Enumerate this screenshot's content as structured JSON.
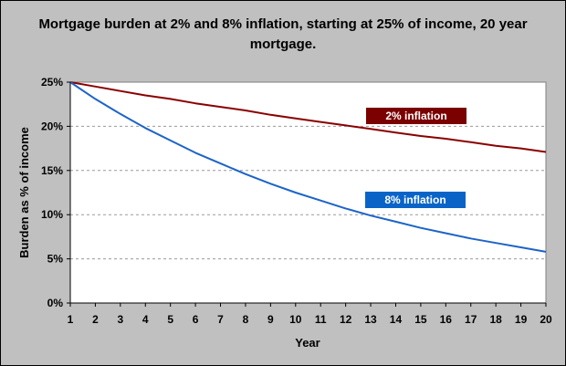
{
  "chart_data": {
    "type": "line",
    "title": "Mortgage burden at 2% and 8% inflation, starting at 25% of income, 20 year mortgage.",
    "xlabel": "Year",
    "ylabel": "Burden as % of income",
    "x": [
      1,
      2,
      3,
      4,
      5,
      6,
      7,
      8,
      9,
      10,
      11,
      12,
      13,
      14,
      15,
      16,
      17,
      18,
      19,
      20
    ],
    "x_tick_labels": [
      "1",
      "2",
      "3",
      "4",
      "5",
      "6",
      "7",
      "8",
      "9",
      "10",
      "11",
      "12",
      "13",
      "14",
      "15",
      "16",
      "17",
      "18",
      "19",
      "20"
    ],
    "ylim": [
      0,
      25
    ],
    "y_ticks": [
      0,
      5,
      10,
      15,
      20,
      25
    ],
    "y_tick_labels": [
      "0%",
      "5%",
      "10%",
      "15%",
      "20%",
      "25%"
    ],
    "grid": "horizontal dashed",
    "series": [
      {
        "name": "2%  inflation",
        "color": "#8b0000",
        "label_bg": "#7b0000",
        "values": [
          25.0,
          24.5,
          24.0,
          23.5,
          23.1,
          22.6,
          22.2,
          21.8,
          21.3,
          20.9,
          20.5,
          20.1,
          19.7,
          19.3,
          18.9,
          18.6,
          18.2,
          17.8,
          17.5,
          17.1
        ]
      },
      {
        "name": "8%  inflation",
        "color": "#1c64c8",
        "label_bg": "#0a64c8",
        "values": [
          25.0,
          23.1,
          21.4,
          19.8,
          18.4,
          17.0,
          15.8,
          14.6,
          13.5,
          12.5,
          11.6,
          10.7,
          9.9,
          9.2,
          8.5,
          7.9,
          7.3,
          6.8,
          6.3,
          5.8
        ]
      }
    ],
    "plot_background": "#ffffff",
    "frame_background": "#c0c0c0"
  }
}
